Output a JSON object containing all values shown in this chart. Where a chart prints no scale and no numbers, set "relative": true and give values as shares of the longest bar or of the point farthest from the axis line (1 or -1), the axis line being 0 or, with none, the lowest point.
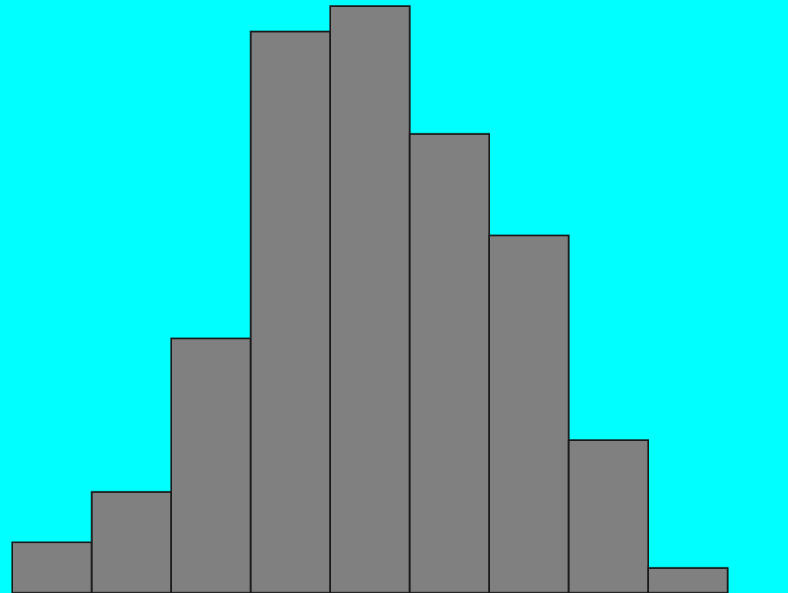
{
  "chart_data": {
    "type": "bar",
    "relative": true,
    "categories": [
      null,
      null,
      null,
      null,
      null,
      null,
      null,
      null,
      null
    ],
    "series": [
      {
        "color": "#808080",
        "values": [
          0.086,
          0.172,
          0.434,
          0.957,
          1,
          0.783,
          0.609,
          0.261,
          0.043
        ]
      }
    ],
    "orientation": "vertical"
  }
}
